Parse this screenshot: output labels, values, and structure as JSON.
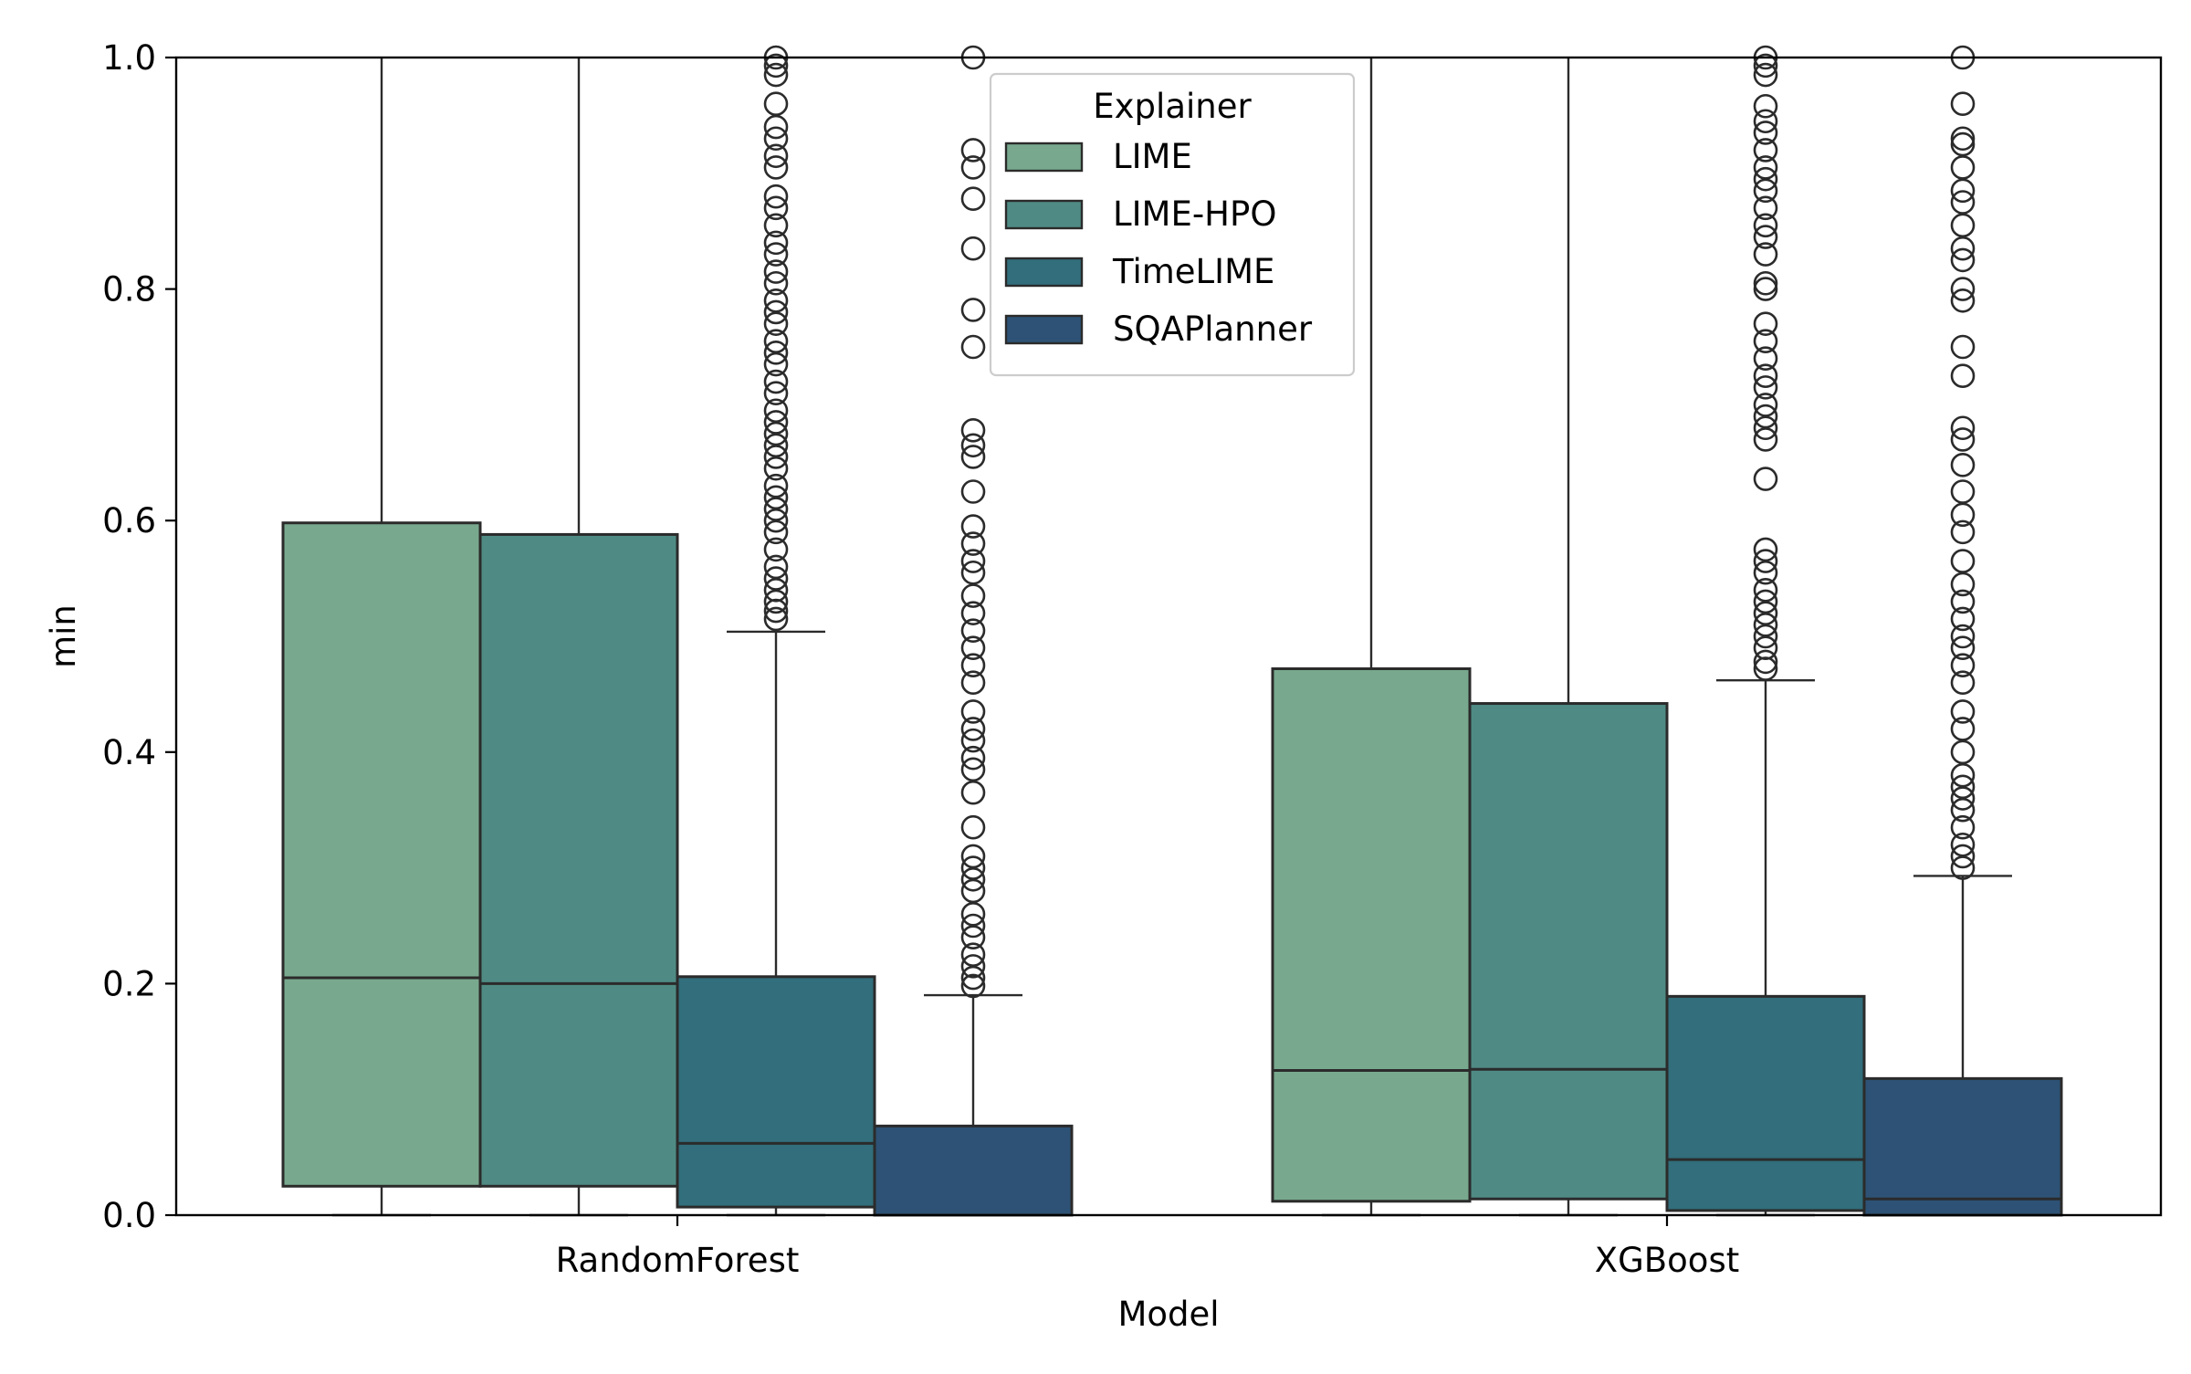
{
  "chart_data": {
    "type": "box",
    "xlabel": "Model",
    "ylabel": "min",
    "ylim": [
      0,
      1
    ],
    "yticks": [
      "0.0",
      "0.2",
      "0.4",
      "0.6",
      "0.8",
      "1.0"
    ],
    "categories": [
      "RandomForest",
      "XGBoost"
    ],
    "legend": {
      "title": "Explainer",
      "placement": "top-center",
      "entries": [
        "LIME",
        "LIME-HPO",
        "TimeLIME",
        "SQAPlanner"
      ]
    },
    "series": [
      {
        "name": "LIME",
        "color": "#78a98f",
        "boxes": [
          {
            "whisker_low": 0.0,
            "q1": 0.025,
            "median": 0.205,
            "q3": 0.598,
            "whisker_high": 1.0,
            "outliers": []
          },
          {
            "whisker_low": 0.0,
            "q1": 0.012,
            "median": 0.125,
            "q3": 0.472,
            "whisker_high": 1.0,
            "outliers": []
          }
        ]
      },
      {
        "name": "LIME-HPO",
        "color": "#4f8b84",
        "boxes": [
          {
            "whisker_low": 0.0,
            "q1": 0.025,
            "median": 0.2,
            "q3": 0.588,
            "whisker_high": 1.0,
            "outliers": []
          },
          {
            "whisker_low": 0.0,
            "q1": 0.014,
            "median": 0.126,
            "q3": 0.442,
            "whisker_high": 1.0,
            "outliers": []
          }
        ]
      },
      {
        "name": "TimeLIME",
        "color": "#326e7b",
        "boxes": [
          {
            "whisker_low": 0.0,
            "q1": 0.007,
            "median": 0.062,
            "q3": 0.206,
            "whisker_high": 0.504,
            "outliers": [
              0.515,
              0.522,
              0.53,
              0.54,
              0.55,
              0.56,
              0.575,
              0.59,
              0.6,
              0.61,
              0.62,
              0.63,
              0.645,
              0.655,
              0.665,
              0.675,
              0.685,
              0.695,
              0.71,
              0.72,
              0.735,
              0.745,
              0.755,
              0.77,
              0.78,
              0.79,
              0.805,
              0.815,
              0.83,
              0.84,
              0.855,
              0.87,
              0.88,
              0.905,
              0.915,
              0.93,
              0.94,
              0.96,
              0.985,
              0.993,
              1.0
            ]
          },
          {
            "whisker_low": 0.0,
            "q1": 0.004,
            "median": 0.048,
            "q3": 0.189,
            "whisker_high": 0.462,
            "outliers": [
              0.472,
              0.478,
              0.49,
              0.5,
              0.51,
              0.52,
              0.53,
              0.54,
              0.555,
              0.565,
              0.575,
              0.636,
              0.67,
              0.68,
              0.69,
              0.7,
              0.715,
              0.725,
              0.74,
              0.755,
              0.77,
              0.8,
              0.805,
              0.83,
              0.845,
              0.855,
              0.87,
              0.885,
              0.895,
              0.905,
              0.92,
              0.935,
              0.945,
              0.958,
              0.985,
              0.993,
              1.0
            ]
          }
        ]
      },
      {
        "name": "SQAPlanner",
        "color": "#2d5275",
        "boxes": [
          {
            "whisker_low": 0.0,
            "q1": 0.0,
            "median": 0.0,
            "q3": 0.077,
            "whisker_high": 0.19,
            "outliers": [
              0.198,
              0.205,
              0.215,
              0.225,
              0.24,
              0.25,
              0.26,
              0.28,
              0.29,
              0.3,
              0.31,
              0.335,
              0.365,
              0.385,
              0.395,
              0.41,
              0.42,
              0.435,
              0.46,
              0.475,
              0.49,
              0.505,
              0.52,
              0.535,
              0.555,
              0.565,
              0.58,
              0.595,
              0.625,
              0.655,
              0.665,
              0.678,
              0.75,
              0.782,
              0.835,
              0.878,
              0.905,
              0.92,
              1.0
            ]
          },
          {
            "whisker_low": 0.0,
            "q1": 0.0,
            "median": 0.014,
            "q3": 0.118,
            "whisker_high": 0.293,
            "outliers": [
              0.3,
              0.31,
              0.32,
              0.335,
              0.35,
              0.36,
              0.37,
              0.38,
              0.4,
              0.42,
              0.435,
              0.46,
              0.475,
              0.49,
              0.5,
              0.515,
              0.53,
              0.545,
              0.565,
              0.59,
              0.605,
              0.625,
              0.648,
              0.67,
              0.68,
              0.725,
              0.75,
              0.79,
              0.8,
              0.825,
              0.835,
              0.855,
              0.875,
              0.885,
              0.905,
              0.925,
              0.93,
              0.96,
              1.0
            ]
          }
        ]
      }
    ]
  }
}
